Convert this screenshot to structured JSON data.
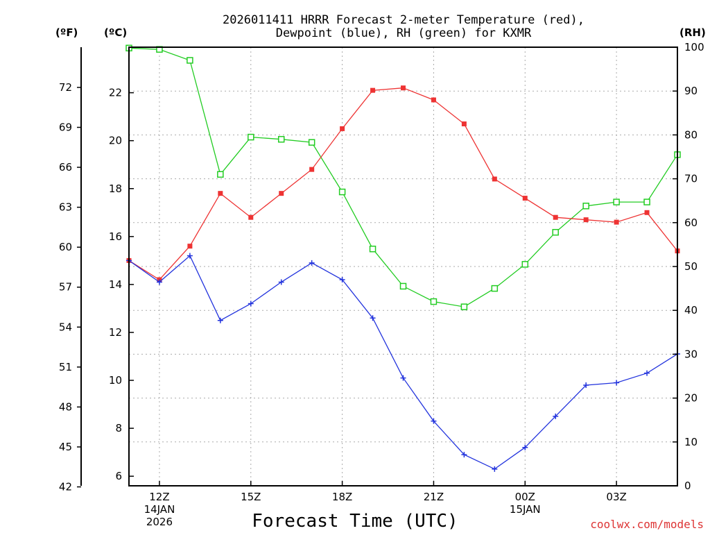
{
  "chart_data": {
    "type": "line",
    "title_lines": [
      "2026011411 HRRR Forecast 2-meter Temperature (red),",
      "Dewpoint (blue), RH (green) for KXMR"
    ],
    "xlabel": "Forecast Time (UTC)",
    "credit": "coolwx.com/models",
    "units": {
      "left_f": "(ºF)",
      "left_c": "(ºC)",
      "right": "(RH)"
    },
    "x": [
      0,
      1,
      2,
      3,
      4,
      5,
      6,
      7,
      8,
      9,
      10,
      11,
      12,
      13,
      14,
      15,
      16,
      17,
      18
    ],
    "x_ticks": [
      {
        "x": 1,
        "lines": [
          "12Z",
          "14JAN",
          "2026"
        ]
      },
      {
        "x": 4,
        "lines": [
          "15Z"
        ]
      },
      {
        "x": 7,
        "lines": [
          "18Z"
        ]
      },
      {
        "x": 10,
        "lines": [
          "21Z"
        ]
      },
      {
        "x": 13,
        "lines": [
          "00Z",
          "15JAN"
        ]
      },
      {
        "x": 16,
        "lines": [
          "03Z"
        ]
      }
    ],
    "xlim": [
      0,
      18
    ],
    "ylim_c": [
      5.6,
      23.9
    ],
    "c_ticks": [
      6,
      8,
      10,
      12,
      14,
      16,
      18,
      20,
      22
    ],
    "f_ticks": [
      42,
      45,
      48,
      51,
      54,
      57,
      60,
      63,
      66,
      69,
      72
    ],
    "ylim_rh": [
      0,
      100
    ],
    "rh_ticks": [
      0,
      10,
      20,
      30,
      40,
      50,
      60,
      70,
      80,
      90,
      100
    ],
    "series": [
      {
        "name": "Temperature",
        "color": "#ee3333",
        "marker": "filled-square",
        "axis": "c",
        "values": [
          15.0,
          14.2,
          15.6,
          17.8,
          16.8,
          17.8,
          18.8,
          20.5,
          22.1,
          22.2,
          21.7,
          20.7,
          18.4,
          17.6,
          16.8,
          16.7,
          16.6,
          17.0,
          15.4
        ]
      },
      {
        "name": "Dewpoint",
        "color": "#2233dd",
        "marker": "plus",
        "axis": "c",
        "values": [
          15.0,
          14.1,
          15.2,
          12.5,
          13.2,
          14.1,
          14.9,
          14.2,
          12.6,
          10.1,
          8.3,
          6.9,
          6.3,
          7.2,
          8.5,
          9.8,
          9.9,
          10.3,
          11.1
        ]
      },
      {
        "name": "RH",
        "color": "#22cc22",
        "marker": "open-square",
        "axis": "rh",
        "values": [
          99.8,
          99.5,
          97.0,
          71.0,
          79.5,
          79.0,
          78.3,
          67.0,
          54.0,
          45.5,
          42.0,
          40.8,
          45.0,
          50.5,
          57.8,
          63.8,
          64.7,
          64.7,
          75.5
        ]
      }
    ]
  }
}
